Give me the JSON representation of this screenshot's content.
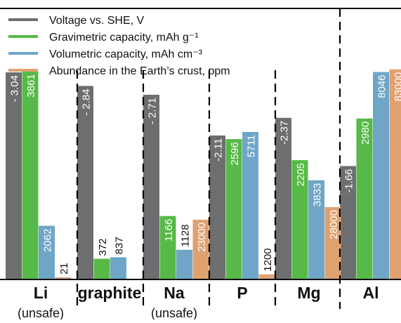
{
  "chart_data": {
    "type": "bar",
    "title": "",
    "xlabel": "",
    "ylabel": "",
    "legend_position": "top-left",
    "categories": [
      {
        "label": "Li",
        "sublabel": "(unsafe)"
      },
      {
        "label": "graphite",
        "sublabel": ""
      },
      {
        "label": "Na",
        "sublabel": "(unsafe)"
      },
      {
        "label": "P",
        "sublabel": ""
      },
      {
        "label": "Mg",
        "sublabel": ""
      },
      {
        "label": "Al",
        "sublabel": ""
      }
    ],
    "series": [
      {
        "name": "Voltage vs. SHE, V",
        "color": "#6d6e70",
        "values": [
          -3.04,
          -2.84,
          -2.71,
          -2.11,
          -2.37,
          -1.66
        ],
        "labels": [
          "- 3.04",
          "- 2.84",
          "- 2.71",
          "-2.11",
          "-2.37",
          "-1.66"
        ]
      },
      {
        "name": "Gravimetric capacity, mAh g⁻¹",
        "color": "#57b947",
        "values": [
          3861,
          372,
          1166,
          2596,
          2205,
          2980
        ],
        "labels": [
          "3861",
          "372",
          "1166",
          "2596",
          "2205",
          "2980"
        ]
      },
      {
        "name": "Volumetric capacity, mAh cm⁻³",
        "color": "#6fa6c7",
        "values": [
          2062,
          837,
          1128,
          5711,
          3833,
          8046
        ],
        "labels": [
          "2062",
          "837",
          "1128",
          "5711",
          "3833",
          "8046"
        ]
      },
      {
        "name": "Abundance in the Earth’s crust, ppm",
        "color": "#e0a171",
        "values": [
          21,
          null,
          23000,
          1200,
          28000,
          83000
        ],
        "labels": [
          "21",
          "",
          "23000",
          "1200",
          "28000",
          "83000"
        ]
      }
    ]
  }
}
